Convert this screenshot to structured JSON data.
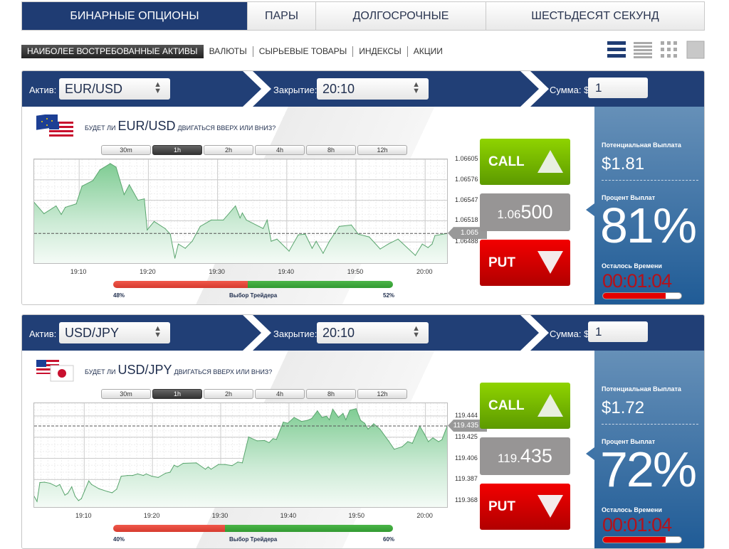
{
  "tabs": [
    {
      "label": "БИНАРНЫЕ ОПЦИОНЫ",
      "active": true
    },
    {
      "label": "ПАРЫ"
    },
    {
      "label": "ДОЛГОСРОЧНЫЕ"
    },
    {
      "label": "ШЕСТЬДЕСЯТ СЕКУНД"
    }
  ],
  "filters": [
    {
      "label": "НАИБОЛЕЕ ВОСТРЕБОВАННЫЕ АКТИВЫ",
      "active": true
    },
    {
      "label": "ВАЛЮТЫ"
    },
    {
      "label": "СЫРЬЕВЫЕ ТОВАРЫ"
    },
    {
      "label": "ИНДЕКСЫ"
    },
    {
      "label": "АКЦИИ"
    }
  ],
  "view_icons": [
    "list-large-icon",
    "list-compact-icon",
    "grid-icon",
    "single-block-icon"
  ],
  "colors": {
    "header": "#213f76",
    "call": "#7cc000",
    "put": "#d80000",
    "timer": "#b3121b",
    "area": "#7fcc93"
  },
  "labels": {
    "asset": "Актив:",
    "close": "Закрытие:",
    "amount": "Сумма: $",
    "question_pre": "БУДЕТ ЛИ",
    "question_post": "ДВИГАТЬСЯ ВВЕРХ ИЛИ ВНИЗ?",
    "call": "CALL",
    "put": "PUT",
    "trader_choice": "Выбор Трейдера",
    "potential_payout": "Потенциальная Выплата",
    "payout_percent": "Процент Выплат",
    "time_left": "Осталось Времени"
  },
  "timeframes": [
    "30m",
    "1h",
    "2h",
    "4h",
    "8h",
    "12h"
  ],
  "active_timeframe": "1h",
  "panels": [
    {
      "asset": "EUR/USD",
      "close_time": "20:10",
      "amount": "1",
      "flag": "eu-us-flags",
      "price_small": "1.06",
      "price_large": "500",
      "current_marker": "1.065",
      "trader_put_pct": "48%",
      "trader_call_pct": "52%",
      "put_share": 48,
      "payout": "$1.81",
      "percent": "81%",
      "timer": "00:01:04",
      "time_left_fraction": 0.8
    },
    {
      "asset": "USD/JPY",
      "close_time": "20:10",
      "amount": "1",
      "flag": "us-jp-flags",
      "price_small": "119.",
      "price_large": "435",
      "current_marker": "119.435",
      "trader_put_pct": "40%",
      "trader_call_pct": "60%",
      "put_share": 40,
      "payout": "$1.72",
      "percent": "72%",
      "timer": "00:01:04",
      "time_left_fraction": 0.8
    }
  ],
  "chart_data": [
    {
      "type": "area",
      "xlim": [
        "19:03:30",
        "20:03:10"
      ],
      "ylim": [
        1.06458,
        1.06605
      ],
      "xticks": [
        "19:10",
        "19:20",
        "19:30",
        "19:40",
        "19:50",
        "20:00"
      ],
      "yticks": [
        "1.06605",
        "1.06576",
        "1.06547",
        "1.06518",
        "1.06488"
      ],
      "reference_line": 1.065,
      "grid": true,
      "points": [
        [
          "19:03:30",
          1.06544
        ],
        [
          "19:04:55",
          1.06528
        ],
        [
          "19:06:40",
          1.06539
        ],
        [
          "19:07:25",
          1.06527
        ],
        [
          "19:08:00",
          1.06537
        ],
        [
          "19:09:35",
          1.06542
        ],
        [
          "19:10:25",
          1.06567
        ],
        [
          "19:12:00",
          1.06575
        ],
        [
          "19:13:00",
          1.0659
        ],
        [
          "19:14:30",
          1.06599
        ],
        [
          "19:15:20",
          1.06594
        ],
        [
          "19:16:30",
          1.06555
        ],
        [
          "19:17:15",
          1.06569
        ],
        [
          "19:18:30",
          1.06547
        ],
        [
          "19:19:25",
          1.06549
        ],
        [
          "19:19:50",
          1.06505
        ],
        [
          "19:20:50",
          1.06517
        ],
        [
          "19:22:25",
          1.06507
        ],
        [
          "19:23:10",
          1.06499
        ],
        [
          "19:23:50",
          1.06465
        ],
        [
          "19:24:20",
          1.06485
        ],
        [
          "19:25:20",
          1.06479
        ],
        [
          "19:26:20",
          1.06489
        ],
        [
          "19:27:30",
          1.0651
        ],
        [
          "19:29:05",
          1.06519
        ],
        [
          "19:30:50",
          1.06519
        ],
        [
          "19:32:35",
          1.06539
        ],
        [
          "19:33:15",
          1.06522
        ],
        [
          "19:33:35",
          1.06529
        ],
        [
          "19:34:10",
          1.06519
        ],
        [
          "19:36:35",
          1.06507
        ],
        [
          "19:37:10",
          1.06519
        ],
        [
          "19:37:45",
          1.06489
        ],
        [
          "19:38:35",
          1.06492
        ],
        [
          "19:40:20",
          1.06475
        ],
        [
          "19:41:40",
          1.06498
        ],
        [
          "19:42:40",
          1.06499
        ],
        [
          "19:43:40",
          1.06479
        ],
        [
          "19:44:15",
          1.06489
        ],
        [
          "19:45:15",
          1.06472
        ],
        [
          "19:46:10",
          1.06489
        ],
        [
          "19:47:35",
          1.0651
        ],
        [
          "19:49:20",
          1.06512
        ],
        [
          "19:50:20",
          1.06499
        ],
        [
          "19:51:55",
          1.06495
        ],
        [
          "19:53:30",
          1.06478
        ],
        [
          "19:54:40",
          1.06485
        ],
        [
          "19:56:05",
          1.06492
        ],
        [
          "19:58:35",
          1.06469
        ],
        [
          "19:59:35",
          1.06485
        ],
        [
          "20:00:25",
          1.0648
        ],
        [
          "20:01:00",
          1.06485
        ],
        [
          "20:01:25",
          1.06497
        ],
        [
          "20:03:10",
          1.065
        ]
      ]
    },
    {
      "type": "area",
      "xlim": [
        "19:02:40",
        "20:03:10"
      ],
      "ylim": [
        119.3624,
        119.4554
      ],
      "xticks": [
        "19:10",
        "19:20",
        "19:30",
        "19:40",
        "19:50",
        "20:00"
      ],
      "yticks": [
        "119.444",
        "119.425",
        "119.406",
        "119.387",
        "119.368"
      ],
      "reference_line": 119.435,
      "grid": true,
      "points": [
        [
          "19:02:40",
          119.372
        ],
        [
          "19:03:05",
          119.3674
        ],
        [
          "19:03:30",
          119.3843
        ],
        [
          "19:04:10",
          119.3847
        ],
        [
          "19:05:00",
          119.3837
        ],
        [
          "19:05:55",
          119.3809
        ],
        [
          "19:06:25",
          119.3826
        ],
        [
          "19:07:10",
          119.3731
        ],
        [
          "19:07:35",
          119.3746
        ],
        [
          "19:08:10",
          119.3805
        ],
        [
          "19:08:40",
          119.372
        ],
        [
          "19:09:10",
          119.3682
        ],
        [
          "19:09:35",
          119.3699
        ],
        [
          "19:10:40",
          119.3858
        ],
        [
          "19:11:05",
          119.3826
        ],
        [
          "19:12:10",
          119.3788
        ],
        [
          "19:13:25",
          119.3763
        ],
        [
          "19:14:05",
          119.3752
        ],
        [
          "19:14:45",
          119.3784
        ],
        [
          "19:15:25",
          119.39
        ],
        [
          "19:16:20",
          119.3907
        ],
        [
          "19:17:05",
          119.3907
        ],
        [
          "19:17:50",
          119.3921
        ],
        [
          "19:18:40",
          119.3907
        ],
        [
          "19:19:05",
          119.3921
        ],
        [
          "19:19:55",
          119.39
        ],
        [
          "19:20:50",
          119.3889
        ],
        [
          "19:21:55",
          119.3927
        ],
        [
          "19:22:35",
          119.3936
        ],
        [
          "19:23:10",
          119.3999
        ],
        [
          "19:23:40",
          119.3984
        ],
        [
          "19:24:30",
          119.4016
        ],
        [
          "19:26:25",
          119.402
        ],
        [
          "19:27:45",
          119.3963
        ],
        [
          "19:28:10",
          119.3984
        ],
        [
          "19:28:35",
          119.3963
        ],
        [
          "19:29:40",
          119.4005
        ],
        [
          "19:30:35",
          119.4005
        ],
        [
          "19:31:40",
          119.3995
        ],
        [
          "19:32:30",
          119.4027
        ],
        [
          "19:33:10",
          119.402
        ],
        [
          "19:34:05",
          119.4252
        ],
        [
          "19:35:20",
          119.4217
        ],
        [
          "19:36:25",
          119.422
        ],
        [
          "19:37:05",
          119.4201
        ],
        [
          "19:37:40",
          119.4237
        ],
        [
          "19:38:10",
          119.423
        ],
        [
          "19:39:10",
          119.4385
        ],
        [
          "19:39:50",
          119.4375
        ],
        [
          "19:40:45",
          119.4427
        ],
        [
          "19:41:50",
          119.4391
        ],
        [
          "19:42:40",
          119.44
        ],
        [
          "19:43:20",
          119.4417
        ],
        [
          "19:44:10",
          119.4486
        ],
        [
          "19:44:50",
          119.4427
        ],
        [
          "19:45:30",
          119.4438
        ],
        [
          "19:45:55",
          119.4406
        ],
        [
          "19:46:25",
          119.4501
        ],
        [
          "19:47:15",
          119.4427
        ],
        [
          "19:47:55",
          119.4463
        ],
        [
          "19:48:20",
          119.4406
        ],
        [
          "19:48:55",
          119.4491
        ],
        [
          "19:49:50",
          119.4505
        ],
        [
          "19:50:30",
          119.44
        ],
        [
          "19:51:05",
          119.4375
        ],
        [
          "19:51:35",
          119.4322
        ],
        [
          "19:52:25",
          119.437
        ],
        [
          "19:53:20",
          119.4322
        ],
        [
          "19:54:35",
          119.4217
        ],
        [
          "19:55:25",
          119.4142
        ],
        [
          "19:56:35",
          119.4164
        ],
        [
          "19:57:25",
          119.421
        ],
        [
          "19:58:05",
          119.4195
        ],
        [
          "19:59:10",
          119.4349
        ],
        [
          "19:59:50",
          119.4279
        ],
        [
          "20:00:25",
          119.421
        ],
        [
          "20:01:05",
          119.4244
        ],
        [
          "20:01:55",
          119.421
        ],
        [
          "20:02:25",
          119.4227
        ],
        [
          "20:03:10",
          119.4347
        ]
      ]
    }
  ]
}
